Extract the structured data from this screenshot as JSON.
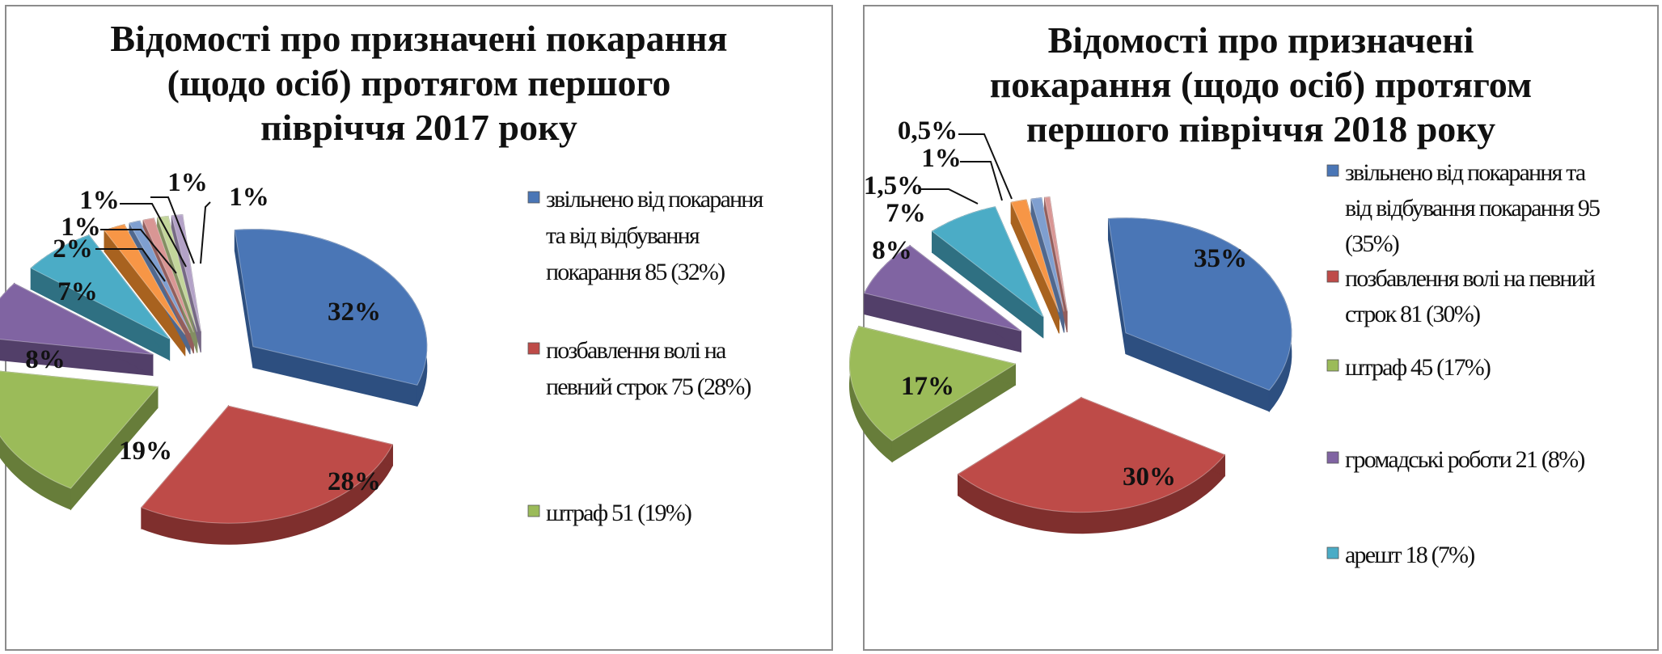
{
  "chart_data": [
    {
      "type": "pie",
      "title_lines": [
        "Відомості про призначені покарання",
        "(щодо осіб) протягом першого",
        "півріччя 2017 року"
      ],
      "slices": [
        {
          "value": 32,
          "label": "32%",
          "color": "#4a76b6",
          "side": "#2d4f80"
        },
        {
          "value": 28,
          "label": "28%",
          "color": "#be4b48",
          "side": "#7f2f2d"
        },
        {
          "value": 19,
          "label": "19%",
          "color": "#9bbb59",
          "side": "#677d3a"
        },
        {
          "value": 8,
          "label": "8%",
          "color": "#8064a2",
          "side": "#523f69"
        },
        {
          "value": 7,
          "label": "7%",
          "color": "#4bacc6",
          "side": "#2f7082"
        },
        {
          "value": 2,
          "label": "2%",
          "color": "#f79646",
          "side": "#a8621f"
        },
        {
          "value": 1,
          "label": "1%",
          "color": "#7f9fd0",
          "side": "#50688e"
        },
        {
          "value": 1,
          "label": "1%",
          "color": "#d99694",
          "side": "#935e5c"
        },
        {
          "value": 1,
          "label": "1%",
          "color": "#c3d69b",
          "side": "#838f62"
        },
        {
          "value": 1,
          "label": "1%",
          "color": "#b3a2c7",
          "side": "#766985"
        }
      ],
      "legend": [
        {
          "lines": [
            "звільнено від покарання",
            "та від відбування",
            "покарання  85 (32%)"
          ],
          "color": "#4a76b6"
        },
        {
          "lines": [
            "позбавлення волі на",
            "певний строк  75 (28%)"
          ],
          "color": "#be4b48"
        },
        {
          "lines": [
            "штраф  51 (19%)"
          ],
          "color": "#9bbb59"
        }
      ]
    },
    {
      "type": "pie",
      "title_lines": [
        "Відомості про призначені",
        "покарання (щодо осіб) протягом",
        "першого півріччя 2018 року"
      ],
      "slices": [
        {
          "value": 35,
          "label": "35%",
          "color": "#4a76b6",
          "side": "#2d4f80"
        },
        {
          "value": 30,
          "label": "30%",
          "color": "#be4b48",
          "side": "#7f2f2d"
        },
        {
          "value": 17,
          "label": "17%",
          "color": "#9bbb59",
          "side": "#677d3a"
        },
        {
          "value": 8,
          "label": "8%",
          "color": "#8064a2",
          "side": "#523f69"
        },
        {
          "value": 7,
          "label": "7%",
          "color": "#4bacc6",
          "side": "#2f7082"
        },
        {
          "value": 1.5,
          "label": "1,5%",
          "color": "#f79646",
          "side": "#a8621f"
        },
        {
          "value": 1,
          "label": "1%",
          "color": "#7f9fd0",
          "side": "#50688e"
        },
        {
          "value": 0.5,
          "label": "0,5%",
          "color": "#d99694",
          "side": "#935e5c"
        }
      ],
      "legend": [
        {
          "lines": [
            "звільнено від покарання та",
            "від відбування покарання  95",
            "(35%)"
          ],
          "color": "#4a76b6"
        },
        {
          "lines": [
            "позбавлення волі на певний",
            "строк  81 (30%)"
          ],
          "color": "#be4b48"
        },
        {
          "lines": [
            "штраф  45 (17%)"
          ],
          "color": "#9bbb59"
        },
        {
          "lines": [
            "громадські роботи  21 (8%)"
          ],
          "color": "#8064a2"
        },
        {
          "lines": [
            "арешт  18 (7%)"
          ],
          "color": "#4bacc6"
        }
      ]
    }
  ]
}
